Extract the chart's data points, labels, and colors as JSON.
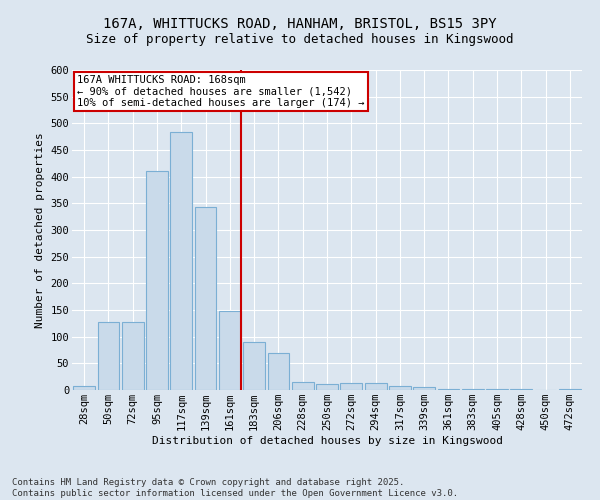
{
  "title_line1": "167A, WHITTUCKS ROAD, HANHAM, BRISTOL, BS15 3PY",
  "title_line2": "Size of property relative to detached houses in Kingswood",
  "xlabel": "Distribution of detached houses by size in Kingswood",
  "ylabel": "Number of detached properties",
  "bar_labels": [
    "28sqm",
    "50sqm",
    "72sqm",
    "95sqm",
    "117sqm",
    "139sqm",
    "161sqm",
    "183sqm",
    "206sqm",
    "228sqm",
    "250sqm",
    "272sqm",
    "294sqm",
    "317sqm",
    "339sqm",
    "361sqm",
    "383sqm",
    "405sqm",
    "428sqm",
    "450sqm",
    "472sqm"
  ],
  "bar_values": [
    8,
    128,
    128,
    410,
    483,
    343,
    148,
    90,
    70,
    15,
    12,
    13,
    13,
    7,
    5,
    2,
    2,
    2,
    1,
    0,
    2
  ],
  "bar_color": "#c9daea",
  "bar_edge_color": "#7bafd4",
  "vline_x": 6.45,
  "vline_color": "#cc0000",
  "annotation_title": "167A WHITTUCKS ROAD: 168sqm",
  "annotation_line1": "← 90% of detached houses are smaller (1,542)",
  "annotation_line2": "10% of semi-detached houses are larger (174) →",
  "annotation_box_color": "#ffffff",
  "annotation_box_edge": "#cc0000",
  "ylim": [
    0,
    600
  ],
  "yticks": [
    0,
    50,
    100,
    150,
    200,
    250,
    300,
    350,
    400,
    450,
    500,
    550,
    600
  ],
  "bg_color": "#dce6f0",
  "plot_bg_color": "#dce6f0",
  "footer": "Contains HM Land Registry data © Crown copyright and database right 2025.\nContains public sector information licensed under the Open Government Licence v3.0.",
  "title_fontsize": 10,
  "subtitle_fontsize": 9,
  "axis_label_fontsize": 8,
  "tick_fontsize": 7.5,
  "annotation_fontsize": 7.5,
  "footer_fontsize": 6.5
}
